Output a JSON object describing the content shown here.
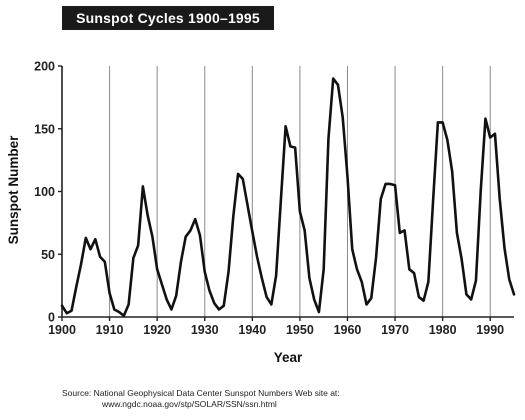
{
  "chart_data": {
    "type": "line",
    "title": "Sunspot Cycles 1900–1995",
    "xlabel": "Year",
    "ylabel": "Sunspot Number",
    "xlim": [
      1900,
      1995
    ],
    "ylim": [
      0,
      200
    ],
    "xticks": [
      1900,
      1910,
      1920,
      1930,
      1940,
      1950,
      1960,
      1970,
      1980,
      1990
    ],
    "yticks": [
      0,
      50,
      100,
      150,
      200
    ],
    "grid": "vertical",
    "legend": "none",
    "line_color": "#111111",
    "x": [
      1900,
      1901,
      1902,
      1903,
      1904,
      1905,
      1906,
      1907,
      1908,
      1909,
      1910,
      1911,
      1912,
      1913,
      1914,
      1915,
      1916,
      1917,
      1918,
      1919,
      1920,
      1921,
      1922,
      1923,
      1924,
      1925,
      1926,
      1927,
      1928,
      1929,
      1930,
      1931,
      1932,
      1933,
      1934,
      1935,
      1936,
      1937,
      1938,
      1939,
      1940,
      1941,
      1942,
      1943,
      1944,
      1945,
      1946,
      1947,
      1948,
      1949,
      1950,
      1951,
      1952,
      1953,
      1954,
      1955,
      1956,
      1957,
      1958,
      1959,
      1960,
      1961,
      1962,
      1963,
      1964,
      1965,
      1966,
      1967,
      1968,
      1969,
      1970,
      1971,
      1972,
      1973,
      1974,
      1975,
      1976,
      1977,
      1978,
      1979,
      1980,
      1981,
      1982,
      1983,
      1984,
      1985,
      1986,
      1987,
      1988,
      1989,
      1990,
      1991,
      1992,
      1993,
      1994,
      1995
    ],
    "values": [
      9,
      3,
      5,
      24,
      42,
      63,
      54,
      62,
      48,
      44,
      19,
      6,
      4,
      1,
      10,
      47,
      57,
      104,
      81,
      64,
      38,
      26,
      14,
      6,
      17,
      44,
      64,
      69,
      78,
      65,
      36,
      21,
      11,
      6,
      9,
      36,
      80,
      114,
      110,
      89,
      68,
      48,
      31,
      16,
      10,
      33,
      93,
      152,
      136,
      135,
      84,
      69,
      31,
      14,
      4,
      38,
      142,
      190,
      185,
      159,
      112,
      54,
      38,
      28,
      10,
      15,
      47,
      94,
      106,
      106,
      105,
      67,
      69,
      38,
      35,
      16,
      13,
      28,
      93,
      155,
      155,
      141,
      116,
      67,
      46,
      18,
      14,
      29,
      100,
      158,
      143,
      146,
      94,
      55,
      30,
      18
    ]
  },
  "source": {
    "line1": "Source: National Geophysical Data Center Sunspot Numbers Web site at:",
    "line2": "www.ngdc.noaa.gov/stp/SOLAR/SSN/ssn.html"
  }
}
